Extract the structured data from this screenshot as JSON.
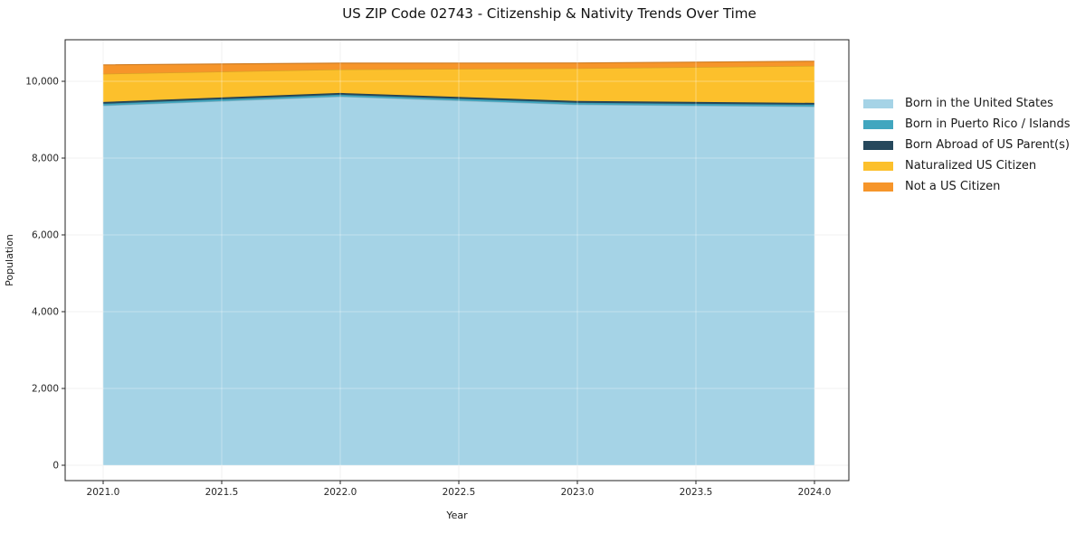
{
  "chart_data": {
    "type": "area",
    "stacked": true,
    "title": "US ZIP Code 02743 - Citizenship & Nativity Trends Over Time",
    "xlabel": "Year",
    "ylabel": "Population",
    "x": [
      2021,
      2022,
      2023,
      2024
    ],
    "series": [
      {
        "name": "Born in the United States",
        "color": "#a5d3e6",
        "values": [
          9365,
          9600,
          9390,
          9340
        ]
      },
      {
        "name": "Born in Puerto Rico / Islands",
        "color": "#41a6bf",
        "values": [
          50,
          50,
          50,
          50
        ]
      },
      {
        "name": "Born Abroad of US Parent(s)",
        "color": "#26485c",
        "values": [
          45,
          45,
          45,
          45
        ]
      },
      {
        "name": "Naturalized US Citizen",
        "color": "#fcc02c",
        "values": [
          730,
          610,
          850,
          965
        ]
      },
      {
        "name": "Not a US Citizen",
        "color": "#f6952a",
        "values": [
          235,
          165,
          140,
          120
        ]
      }
    ],
    "x_ticks": [
      2021.0,
      2021.5,
      2022.0,
      2022.5,
      2023.0,
      2023.5,
      2024.0
    ],
    "x_tick_labels": [
      "2021.0",
      "2021.5",
      "2022.0",
      "2022.5",
      "2023.0",
      "2023.5",
      "2024.0"
    ],
    "y_ticks": [
      0,
      2000,
      4000,
      6000,
      8000,
      10000
    ],
    "y_tick_labels": [
      "0",
      "2,000",
      "4,000",
      "6,000",
      "8,000",
      "10,000"
    ],
    "xlim": [
      2020.84,
      2024.145
    ],
    "ylim": [
      -400,
      11080
    ],
    "grid": true,
    "grid_color": "#e8e8e8",
    "spine_color": "#222222",
    "tick_text_color": "#262626",
    "legend_position": "right"
  }
}
